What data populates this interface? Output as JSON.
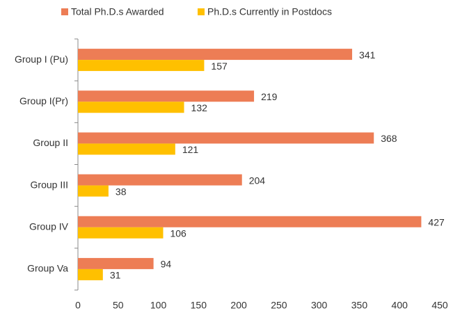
{
  "chart_data": {
    "type": "hbar",
    "categories": [
      "Group I (Pu)",
      "Group I(Pr)",
      "Group II",
      "Group III",
      "Group IV",
      "Group Va"
    ],
    "series": [
      {
        "name": "Total Ph.D.s Awarded",
        "color": "#ED7D55",
        "values": [
          341,
          219,
          368,
          204,
          427,
          94
        ]
      },
      {
        "name": "Ph.D.s Currently in Postdocs",
        "color": "#FFC000",
        "values": [
          157,
          132,
          121,
          38,
          106,
          31
        ]
      }
    ],
    "xlim": [
      0,
      450
    ],
    "xticks": [
      0,
      50,
      100,
      150,
      200,
      250,
      300,
      350,
      400,
      450
    ],
    "grid": false,
    "legend": "top"
  }
}
